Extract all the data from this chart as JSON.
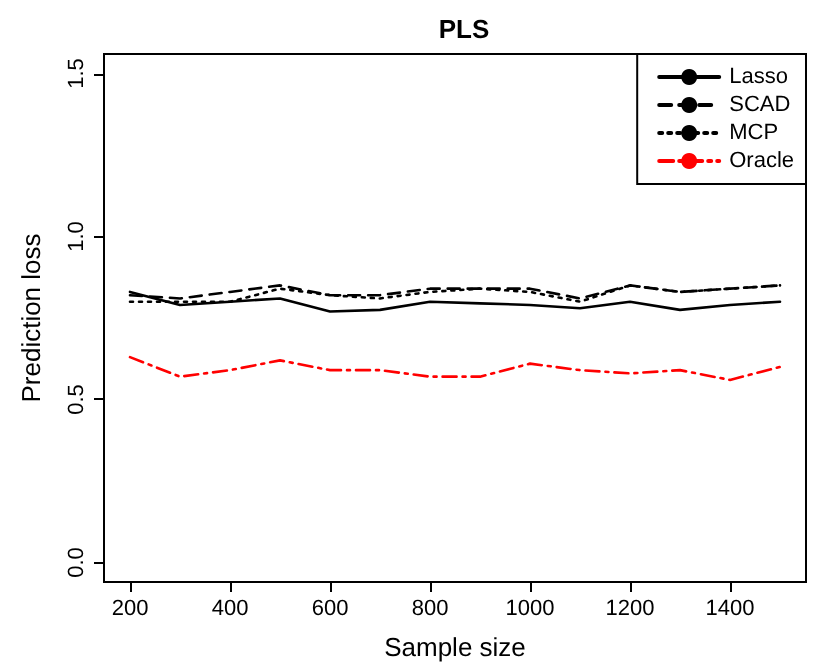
{
  "chart_data": {
    "type": "line",
    "title": "PLS",
    "xlabel": "Sample size",
    "ylabel": "Prediction loss",
    "x": [
      200,
      300,
      400,
      500,
      600,
      700,
      800,
      900,
      1000,
      1100,
      1200,
      1300,
      1400,
      1500
    ],
    "series": [
      {
        "name": "Lasso",
        "color": "#000000",
        "line_style": "solid",
        "values": [
          0.83,
          0.79,
          0.8,
          0.81,
          0.77,
          0.775,
          0.8,
          0.795,
          0.79,
          0.78,
          0.8,
          0.775,
          0.79,
          0.8
        ]
      },
      {
        "name": "SCAD",
        "color": "#000000",
        "line_style": "dashed",
        "values": [
          0.82,
          0.81,
          0.83,
          0.85,
          0.82,
          0.82,
          0.84,
          0.84,
          0.84,
          0.81,
          0.85,
          0.83,
          0.84,
          0.85
        ]
      },
      {
        "name": "MCP",
        "color": "#000000",
        "line_style": "dotted",
        "values": [
          0.8,
          0.8,
          0.8,
          0.84,
          0.82,
          0.81,
          0.83,
          0.84,
          0.83,
          0.8,
          0.85,
          0.83,
          0.84,
          0.85
        ]
      },
      {
        "name": "Oracle",
        "color": "#ff0000",
        "line_style": "dashdot",
        "values": [
          0.63,
          0.57,
          0.59,
          0.62,
          0.59,
          0.59,
          0.57,
          0.57,
          0.61,
          0.59,
          0.58,
          0.59,
          0.56,
          0.6
        ]
      }
    ],
    "xlim": [
      148,
      1552
    ],
    "xticks": [
      200,
      400,
      600,
      800,
      1000,
      1200,
      1400
    ],
    "ylim": [
      -0.06,
      1.56
    ],
    "yticks": [
      {
        "value": 0,
        "label": "0.0"
      },
      {
        "value": 0.5,
        "label": "0.5"
      },
      {
        "value": 1,
        "label": "1.0"
      },
      {
        "value": 1.5,
        "label": "1.5"
      }
    ],
    "grid": false,
    "legend": "top right",
    "marker": "none"
  }
}
